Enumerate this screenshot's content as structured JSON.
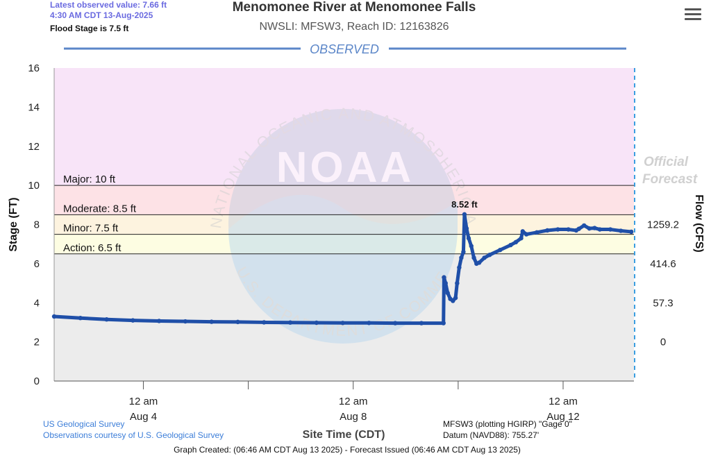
{
  "header": {
    "latest_line1": "Latest observed value: 7.66 ft",
    "latest_line2": "4:30 AM CDT 13-Aug-2025",
    "flood_stage": "Flood Stage is 7.5 ft",
    "title": "Menomonee River at Menomonee Falls",
    "subtitle": "NWSLI: MFSW3, Reach ID: 12163826",
    "menu_icon": "hamburger-menu-icon"
  },
  "footer": {
    "usgs": "US Geological Survey",
    "courtesy": "Observations courtesy of U.S. Geological Survey",
    "plotting": "MFSW3 (plotting HGIRP) \"Gage 0\"",
    "datum": "Datum (NAVD88): 755.27'",
    "created": "Graph Created: (06:46 AM CDT Aug 13 2025) - Forecast Issued (06:46 AM CDT Aug 13 2025)"
  },
  "watermark": {
    "logo_text": "NOAA",
    "ring_top": "NATIONAL OCEANIC AND ATMOSPHERIC ADMINISTRATION",
    "ring_bottom": "U.S. DEPARTMENT OF COMMERCE"
  },
  "chart_data": {
    "type": "line",
    "title": "Menomonee River at Menomonee Falls",
    "section_label": "OBSERVED",
    "ylabel": "Stage (FT)",
    "y2label": "Flow (CFS)",
    "xlabel": "Site Time (CDT)",
    "ylim": [
      0,
      16
    ],
    "yticks": [
      "0",
      "2",
      "4",
      "6",
      "8",
      "10",
      "12",
      "14",
      "16"
    ],
    "flow_ticks": [
      {
        "stage": 2,
        "label": "0"
      },
      {
        "stage": 4,
        "label": "57.3"
      },
      {
        "stage": 6,
        "label": "414.6"
      },
      {
        "stage": 8,
        "label": "1259.2"
      }
    ],
    "xrange_days": [
      0,
      11.05
    ],
    "xticks": [
      {
        "day": 1.7,
        "line1": "12 am",
        "line2": "Aug 4"
      },
      {
        "day": 5.7,
        "line1": "12 am",
        "line2": "Aug 8"
      },
      {
        "day": 9.7,
        "line1": "12 am",
        "line2": "Aug 12"
      }
    ],
    "minor_xticks": [
      3.7,
      7.7
    ],
    "thresholds": [
      {
        "name": "Major",
        "label": "Major: 10 ft",
        "value": 10,
        "color": "#f8e4f8"
      },
      {
        "name": "Moderate",
        "label": "Moderate: 8.5 ft",
        "value": 8.5,
        "color": "#fde2e6"
      },
      {
        "name": "Minor",
        "label": "Minor: 7.5 ft",
        "value": 7.5,
        "color": "#fdf3df"
      },
      {
        "name": "Action",
        "label": "Action: 6.5 ft",
        "value": 6.5,
        "color": "#fdfde2"
      },
      {
        "name": "Normal",
        "label": "",
        "value": 0,
        "color": "#ececec"
      }
    ],
    "peak_label": "8.52 ft",
    "forecast_label_1": "Official",
    "forecast_label_2": "Forecast",
    "series": [
      {
        "color": "#1f4fa8",
        "points": [
          [
            0,
            3.3
          ],
          [
            0.5,
            3.22
          ],
          [
            1,
            3.15
          ],
          [
            1.5,
            3.1
          ],
          [
            2,
            3.07
          ],
          [
            2.5,
            3.05
          ],
          [
            3,
            3.03
          ],
          [
            3.5,
            3.02
          ],
          [
            4,
            3.0
          ],
          [
            4.5,
            2.99
          ],
          [
            5,
            2.98
          ],
          [
            5.5,
            2.97
          ],
          [
            6,
            2.97
          ],
          [
            6.5,
            2.96
          ],
          [
            7,
            2.96
          ],
          [
            7.42,
            2.96
          ],
          [
            7.43,
            5.3
          ],
          [
            7.46,
            5.0
          ],
          [
            7.5,
            4.5
          ],
          [
            7.55,
            4.2
          ],
          [
            7.6,
            4.1
          ],
          [
            7.65,
            4.25
          ],
          [
            7.68,
            5.0
          ],
          [
            7.72,
            5.8
          ],
          [
            7.76,
            6.3
          ],
          [
            7.8,
            6.6
          ],
          [
            7.82,
            8.52
          ],
          [
            7.86,
            7.8
          ],
          [
            7.9,
            7.3
          ],
          [
            7.95,
            6.9
          ],
          [
            8.0,
            6.3
          ],
          [
            8.05,
            6.0
          ],
          [
            8.1,
            6.05
          ],
          [
            8.2,
            6.3
          ],
          [
            8.3,
            6.45
          ],
          [
            8.5,
            6.7
          ],
          [
            8.7,
            6.95
          ],
          [
            8.8,
            7.1
          ],
          [
            8.9,
            7.3
          ],
          [
            8.93,
            7.65
          ],
          [
            9.0,
            7.5
          ],
          [
            9.2,
            7.6
          ],
          [
            9.4,
            7.7
          ],
          [
            9.6,
            7.75
          ],
          [
            9.8,
            7.75
          ],
          [
            9.95,
            7.7
          ],
          [
            10.0,
            7.78
          ],
          [
            10.1,
            7.95
          ],
          [
            10.2,
            7.8
          ],
          [
            10.3,
            7.82
          ],
          [
            10.4,
            7.75
          ],
          [
            10.6,
            7.75
          ],
          [
            10.8,
            7.68
          ],
          [
            11.0,
            7.63
          ]
        ]
      }
    ]
  }
}
